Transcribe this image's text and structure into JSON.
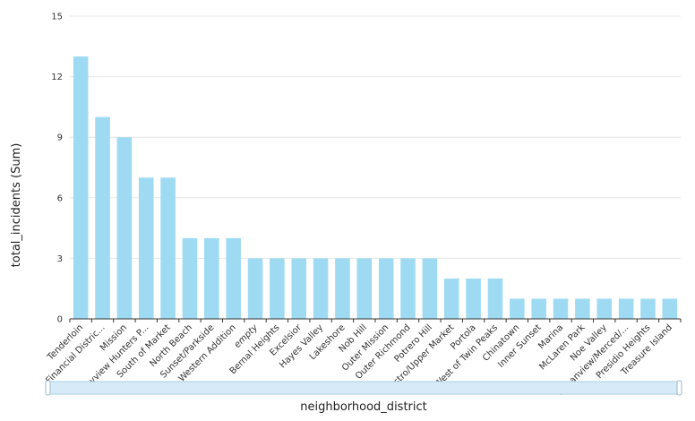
{
  "chart_data": {
    "type": "bar",
    "title": "",
    "xlabel": "neighborhood_district",
    "ylabel": "total_incidents (Sum)",
    "ylim": [
      0,
      15
    ],
    "yticks": [
      0,
      3,
      6,
      9,
      12,
      15
    ],
    "grid": true,
    "bar_color": "#9edbf3",
    "categories": [
      "Tenderloin",
      "Financial Distric...",
      "Mission",
      "Bayview Hunters P...",
      "South of Market",
      "North Beach",
      "Sunset/Parkside",
      "Western Addition",
      "empty",
      "Bernal Heights",
      "Excelsior",
      "Hayes Valley",
      "Lakeshore",
      "Nob Hill",
      "Outer Mission",
      "Outer Richmond",
      "Potrero Hill",
      "Castro/Upper Market",
      "Portola",
      "West of Twin Peaks",
      "Chinatown",
      "Inner Sunset",
      "Marina",
      "McLaren Park",
      "Noe Valley",
      "Oceanview/Merced/...",
      "Presidio Heights",
      "Treasure Island"
    ],
    "values": [
      13,
      10,
      9,
      7,
      7,
      4,
      4,
      4,
      3,
      3,
      3,
      3,
      3,
      3,
      3,
      3,
      3,
      2,
      2,
      2,
      1,
      1,
      1,
      1,
      1,
      1,
      1,
      1
    ]
  }
}
